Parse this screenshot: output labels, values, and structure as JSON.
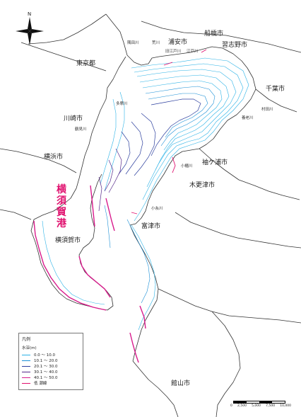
{
  "map": {
    "north_label": "N",
    "cities": {
      "urayasu": "浦安市",
      "funabashi": "船橋市",
      "narashino": "習志野市",
      "tokyo": "東京都",
      "chiba": "千葉市",
      "kawasaki": "川崎市",
      "yokohama": "横浜市",
      "sodegaura": "袖ケ浦市",
      "kisarazu": "木更津市",
      "futtsu": "富津市",
      "yokosuka": "横須賀市",
      "tateyama": "館山市"
    },
    "rivers": {
      "sumida": "隅田川",
      "ara": "荒川",
      "kyuedo": "旧江戸川",
      "edo": "江戸川",
      "tama": "多摩川",
      "tsurumi": "鶴見川",
      "murata": "村田川",
      "yoro": "養老川",
      "obitsu": "小櫃川",
      "koito": "小糸川"
    },
    "harbor_label": "横須賀港",
    "colors": {
      "land_outline": "#333333",
      "depth_0_10": "#2bb2e6",
      "depth_10_20": "#1a8fd6",
      "depth_20_30": "#2c3f9e",
      "depth_30_40": "#55288a",
      "depth_40_50": "#d81b8c",
      "shallows": "#e0106e"
    }
  },
  "legend": {
    "title": "凡例",
    "subtitle": "水深(m)",
    "items": [
      {
        "label": "0.0 ～ 10.0",
        "color": "#2bb2e6"
      },
      {
        "label": "10.1 ～ 20.0",
        "color": "#1a8fd6"
      },
      {
        "label": "20.1 ～ 30.0",
        "color": "#2c3f9e"
      },
      {
        "label": "30.1 ～ 40.0",
        "color": "#55288a"
      },
      {
        "label": "40.1 ～ 50.0",
        "color": "#d81b8c"
      },
      {
        "label": "低 潮線",
        "color": "#e0106e"
      }
    ]
  },
  "scale": {
    "ticks": [
      "0",
      "2,500",
      "5,000",
      "7,500",
      "10,000"
    ],
    "unit": "m"
  }
}
